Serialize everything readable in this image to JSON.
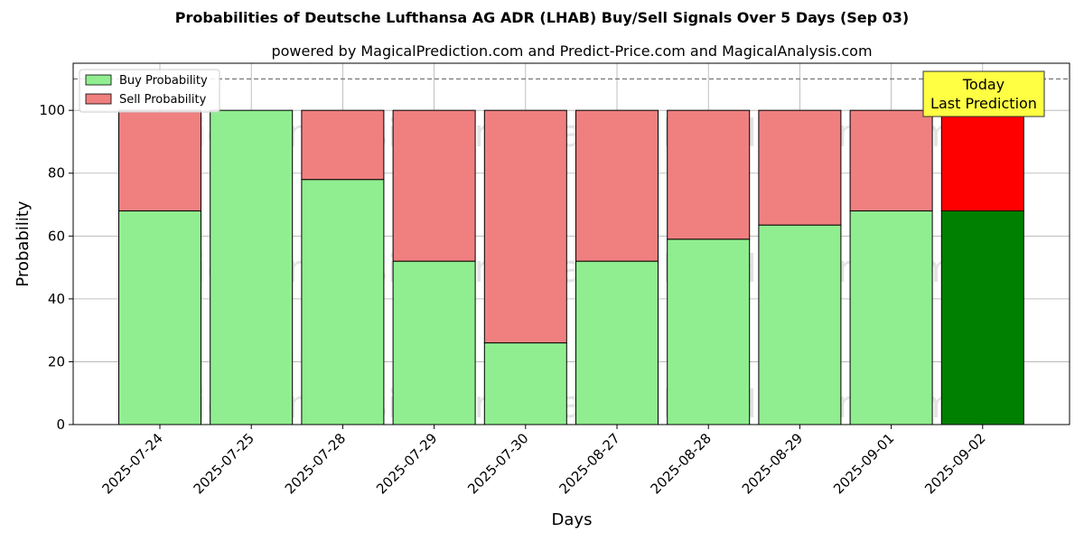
{
  "chart_data": {
    "type": "bar",
    "stacked": true,
    "title": "Probabilities of Deutsche Lufthansa AG ADR (LHAB) Buy/Sell Signals Over 5 Days (Sep 03)",
    "subtitle": "powered by MagicalPrediction.com and Predict-Price.com and MagicalAnalysis.com",
    "xlabel": "Days",
    "ylabel": "Probability",
    "ylim": [
      0,
      115
    ],
    "yticks": [
      0,
      20,
      40,
      60,
      80,
      100
    ],
    "grid": true,
    "legend_placement": "top-left",
    "reference_line": 110,
    "categories": [
      "2025-07-24",
      "2025-07-25",
      "2025-07-28",
      "2025-07-29",
      "2025-07-30",
      "2025-08-27",
      "2025-08-28",
      "2025-08-29",
      "2025-09-01",
      "2025-09-02"
    ],
    "series": [
      {
        "name": "Buy Probability",
        "values": [
          68,
          100,
          78,
          52,
          26,
          52,
          59,
          63.5,
          68,
          68
        ],
        "color": "#90ee90",
        "highlight_color": "#008000"
      },
      {
        "name": "Sell Probability",
        "values": [
          32,
          0,
          22,
          48,
          74,
          48,
          41,
          36.5,
          32,
          32
        ],
        "color": "#f08080",
        "highlight_color": "#ff0000"
      }
    ],
    "highlight_index": 9,
    "annotation": {
      "lines": [
        "Today",
        "Last Prediction"
      ],
      "background": "#ffff44"
    },
    "watermarks": [
      "MagicalAnalysis.com",
      "MagicalPrediction.com"
    ]
  }
}
